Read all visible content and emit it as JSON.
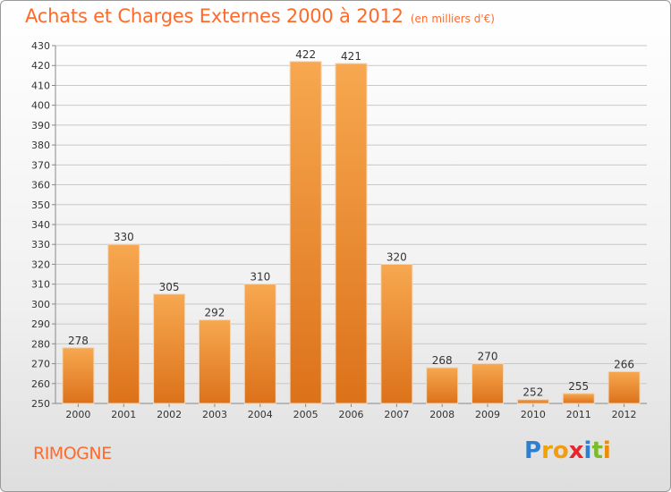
{
  "title": "Achats et Charges Externes 2000 à 2012",
  "unit": "(en milliers d'€)",
  "commune": "RIMOGNE",
  "logo": {
    "letters": [
      "P",
      "r",
      "o",
      "x",
      "i",
      "t",
      "i"
    ],
    "colors": [
      "#2e7fd0",
      "#f0a400",
      "#f39c12",
      "#e8262b",
      "#2e7fd0",
      "#7dbb2e",
      "#f08a00"
    ]
  },
  "colors": {
    "bar_light": "#f6a64e",
    "bar_dark": "#e0761d",
    "grid": "#c8c8c8",
    "accent": "#ff6a2b"
  },
  "chart_data": {
    "type": "bar",
    "categories": [
      "2000",
      "2001",
      "2002",
      "2003",
      "2004",
      "2005",
      "2006",
      "2007",
      "2008",
      "2009",
      "2010",
      "2011",
      "2012"
    ],
    "values": [
      278,
      330,
      305,
      292,
      310,
      422,
      421,
      320,
      268,
      270,
      252,
      255,
      266
    ],
    "ylim": [
      250,
      430
    ],
    "yticks": [
      250,
      260,
      270,
      280,
      290,
      300,
      310,
      320,
      330,
      340,
      350,
      360,
      370,
      380,
      390,
      400,
      410,
      420,
      430
    ],
    "grid": true,
    "xlabel": "",
    "ylabel": ""
  }
}
